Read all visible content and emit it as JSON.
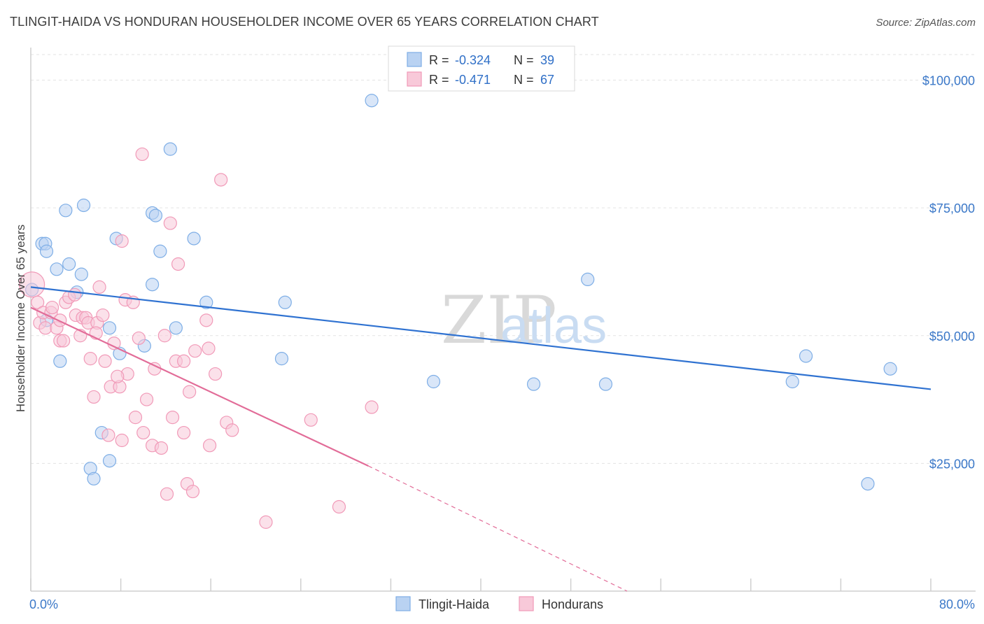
{
  "chart_data": {
    "type": "scatter",
    "title": "TLINGIT-HAIDA VS HONDURAN HOUSEHOLDER INCOME OVER 65 YEARS CORRELATION CHART",
    "source": "Source: ZipAtlas.com",
    "ylabel": "Householder Income Over 65 years",
    "xlim": [
      0,
      80
    ],
    "ylim": [
      0,
      105000
    ],
    "x_tick_labels": [
      "0.0%",
      "80.0%"
    ],
    "y_ticks": [
      {
        "value": 25000,
        "label": "$25,000"
      },
      {
        "value": 50000,
        "label": "$50,000"
      },
      {
        "value": 75000,
        "label": "$75,000"
      },
      {
        "value": 100000,
        "label": "$100,000"
      }
    ],
    "watermark": {
      "zip": "ZIP",
      "atlas": "atlas"
    },
    "stats_legend": [
      {
        "series": "Tlingit-Haida",
        "r_label": "R =",
        "r": "-0.324",
        "n_label": "N =",
        "n": "39"
      },
      {
        "series": "Hondurans",
        "r_label": "R =",
        "r": "-0.471",
        "n_label": "N =",
        "n": "67"
      }
    ],
    "series": [
      {
        "name": "Tlingit-Haida",
        "color": "#7eaee6",
        "fill": "#b9d2f2",
        "line_color": "#2f72d1",
        "trend": {
          "x0": 0,
          "y0": 59500,
          "x1": 80,
          "y1": 39500
        },
        "points": [
          [
            0.1,
            59000
          ],
          [
            1.0,
            68000
          ],
          [
            1.3,
            68000
          ],
          [
            1.4,
            66500
          ],
          [
            2.3,
            63000
          ],
          [
            2.6,
            45000
          ],
          [
            3.1,
            74500
          ],
          [
            3.4,
            64000
          ],
          [
            4.1,
            58500
          ],
          [
            4.5,
            62000
          ],
          [
            4.7,
            75500
          ],
          [
            5.3,
            24000
          ],
          [
            5.6,
            22000
          ],
          [
            6.3,
            31000
          ],
          [
            7.0,
            51500
          ],
          [
            7.0,
            25500
          ],
          [
            7.6,
            69000
          ],
          [
            7.9,
            46500
          ],
          [
            10.1,
            48000
          ],
          [
            10.8,
            60000
          ],
          [
            10.8,
            74000
          ],
          [
            11.1,
            73500
          ],
          [
            11.5,
            66500
          ],
          [
            12.4,
            86500
          ],
          [
            12.9,
            51500
          ],
          [
            14.5,
            69000
          ],
          [
            15.6,
            56500
          ],
          [
            22.3,
            45500
          ],
          [
            22.6,
            56500
          ],
          [
            30.3,
            96000
          ],
          [
            35.8,
            41000
          ],
          [
            44.7,
            40500
          ],
          [
            49.5,
            61000
          ],
          [
            51.1,
            40500
          ],
          [
            67.7,
            41000
          ],
          [
            68.9,
            46000
          ],
          [
            74.4,
            21000
          ],
          [
            76.4,
            43500
          ],
          [
            1.4,
            53000
          ]
        ]
      },
      {
        "name": "Hondurans",
        "color": "#f19ab8",
        "fill": "#f8c9d9",
        "line_color": "#e26c98",
        "trend": {
          "x0": 0,
          "y0": 55500,
          "x1": 30,
          "y1": 24500
        },
        "trend_dashed": {
          "x0": 30,
          "y0": 24500,
          "x1": 53,
          "y1": 0
        },
        "points": [
          [
            0.1,
            60000
          ],
          [
            0.6,
            56500
          ],
          [
            0.8,
            52500
          ],
          [
            1.1,
            54500
          ],
          [
            1.3,
            51500
          ],
          [
            1.8,
            54500
          ],
          [
            1.9,
            55500
          ],
          [
            2.3,
            51500
          ],
          [
            2.6,
            49000
          ],
          [
            2.9,
            49000
          ],
          [
            3.1,
            56500
          ],
          [
            3.4,
            57500
          ],
          [
            3.9,
            58000
          ],
          [
            4.0,
            54000
          ],
          [
            4.4,
            50000
          ],
          [
            4.6,
            53500
          ],
          [
            4.9,
            53500
          ],
          [
            5.1,
            52500
          ],
          [
            5.3,
            45500
          ],
          [
            5.6,
            38000
          ],
          [
            5.9,
            52500
          ],
          [
            6.1,
            59500
          ],
          [
            6.4,
            54000
          ],
          [
            6.6,
            45000
          ],
          [
            6.9,
            30500
          ],
          [
            7.1,
            40000
          ],
          [
            7.4,
            48500
          ],
          [
            7.9,
            40000
          ],
          [
            8.1,
            29500
          ],
          [
            8.1,
            68500
          ],
          [
            8.4,
            57000
          ],
          [
            8.6,
            42500
          ],
          [
            9.1,
            56500
          ],
          [
            9.3,
            34000
          ],
          [
            9.6,
            49500
          ],
          [
            9.9,
            85500
          ],
          [
            10.0,
            31000
          ],
          [
            10.3,
            37500
          ],
          [
            10.8,
            28500
          ],
          [
            11.0,
            43500
          ],
          [
            11.6,
            28000
          ],
          [
            11.9,
            50000
          ],
          [
            12.1,
            19000
          ],
          [
            12.4,
            72000
          ],
          [
            12.6,
            34000
          ],
          [
            12.9,
            45000
          ],
          [
            13.1,
            64000
          ],
          [
            13.6,
            45000
          ],
          [
            13.6,
            31000
          ],
          [
            13.9,
            21000
          ],
          [
            14.1,
            39000
          ],
          [
            14.4,
            19500
          ],
          [
            14.6,
            47000
          ],
          [
            15.6,
            53000
          ],
          [
            15.8,
            47500
          ],
          [
            15.9,
            28500
          ],
          [
            16.4,
            42500
          ],
          [
            16.9,
            80500
          ],
          [
            17.4,
            33000
          ],
          [
            17.9,
            31500
          ],
          [
            20.9,
            13500
          ],
          [
            24.9,
            33500
          ],
          [
            27.4,
            16500
          ],
          [
            30.3,
            36000
          ],
          [
            2.6,
            53000
          ],
          [
            5.8,
            50500
          ],
          [
            7.7,
            42000
          ]
        ]
      }
    ]
  }
}
